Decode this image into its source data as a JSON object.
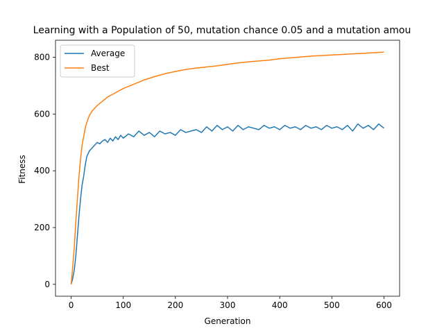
{
  "chart_data": {
    "type": "line",
    "title": "Learning with a Population of 50, mutation chance 0.05 and a mutation amou",
    "xlabel": "Generation",
    "ylabel": "Fitness",
    "xlim": [
      -30,
      630
    ],
    "ylim": [
      -42,
      860
    ],
    "xticks": [
      0,
      100,
      200,
      300,
      400,
      500,
      600
    ],
    "yticks": [
      0,
      200,
      400,
      600,
      800
    ],
    "grid": false,
    "legend_position": "upper left",
    "series": [
      {
        "name": "Average",
        "color": "#1f77b4",
        "x": [
          0,
          3,
          6,
          9,
          12,
          15,
          18,
          21,
          24,
          27,
          30,
          35,
          40,
          45,
          50,
          55,
          60,
          65,
          70,
          75,
          80,
          85,
          90,
          95,
          100,
          110,
          120,
          130,
          140,
          150,
          160,
          170,
          180,
          190,
          200,
          210,
          220,
          230,
          240,
          250,
          260,
          270,
          280,
          290,
          300,
          310,
          320,
          330,
          340,
          350,
          360,
          370,
          380,
          390,
          400,
          410,
          420,
          430,
          440,
          450,
          460,
          470,
          480,
          490,
          500,
          510,
          520,
          530,
          540,
          550,
          560,
          570,
          580,
          590,
          600
        ],
        "values": [
          0,
          20,
          50,
          100,
          170,
          240,
          300,
          350,
          380,
          420,
          450,
          470,
          480,
          490,
          500,
          495,
          505,
          510,
          500,
          515,
          505,
          520,
          510,
          525,
          515,
          530,
          520,
          540,
          525,
          535,
          520,
          540,
          530,
          535,
          525,
          545,
          535,
          540,
          545,
          535,
          555,
          540,
          560,
          545,
          555,
          540,
          560,
          545,
          555,
          550,
          545,
          560,
          550,
          555,
          545,
          560,
          550,
          555,
          545,
          560,
          550,
          555,
          545,
          560,
          550,
          555,
          545,
          560,
          540,
          565,
          550,
          560,
          545,
          565,
          550
        ]
      },
      {
        "name": "Best",
        "color": "#ff7f0e",
        "x": [
          0,
          3,
          6,
          9,
          12,
          15,
          18,
          21,
          24,
          27,
          30,
          35,
          40,
          45,
          50,
          60,
          70,
          80,
          90,
          100,
          120,
          140,
          160,
          180,
          200,
          220,
          240,
          260,
          280,
          300,
          320,
          340,
          360,
          380,
          400,
          420,
          440,
          460,
          480,
          500,
          520,
          540,
          560,
          580,
          600
        ],
        "values": [
          0,
          60,
          130,
          220,
          300,
          380,
          440,
          490,
          520,
          550,
          570,
          595,
          610,
          620,
          630,
          645,
          660,
          670,
          680,
          690,
          705,
          720,
          732,
          742,
          750,
          757,
          762,
          766,
          770,
          775,
          780,
          784,
          787,
          790,
          795,
          798,
          801,
          804,
          806,
          808,
          810,
          812,
          814,
          816,
          818
        ]
      }
    ]
  }
}
